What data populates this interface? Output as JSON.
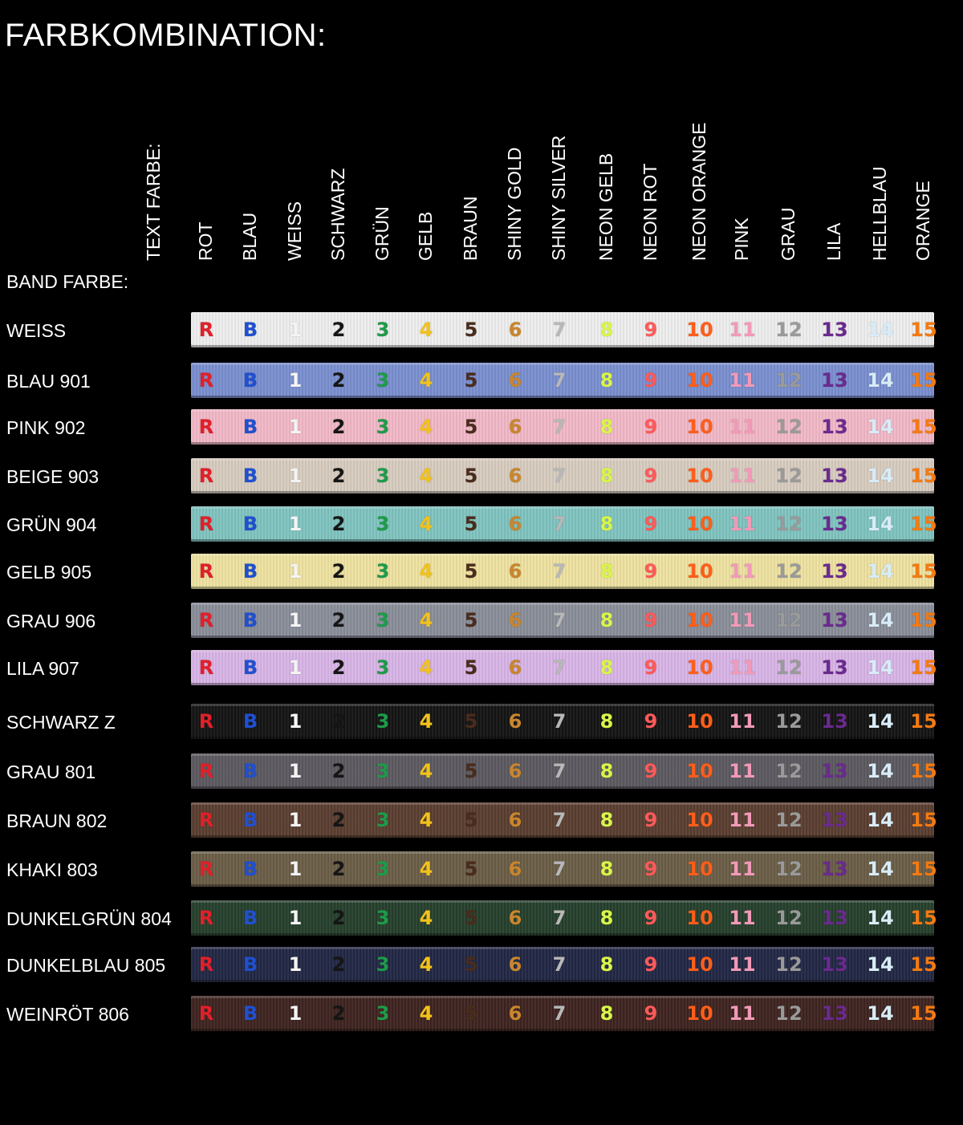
{
  "title": "FARBKOMBINATION:",
  "text_farbe_label": "TEXT FARBE:",
  "band_farbe_label": "BAND FARBE:",
  "text_colors": [
    {
      "name": "ROT",
      "code": "R",
      "color": "#e0202a"
    },
    {
      "name": "BLAU",
      "code": "B",
      "color": "#2050d0"
    },
    {
      "name": "WEISS",
      "code": "1",
      "color": "#f4f4f4"
    },
    {
      "name": "SCHWARZ",
      "code": "2",
      "color": "#151515"
    },
    {
      "name": "GRÜN",
      "code": "3",
      "color": "#1f9a4a"
    },
    {
      "name": "GELB",
      "code": "4",
      "color": "#f2c21b"
    },
    {
      "name": "BRAUN",
      "code": "5",
      "color": "#4a2c1c"
    },
    {
      "name": "SHINY GOLD",
      "code": "6",
      "color": "#c8862e"
    },
    {
      "name": "SHINY SILVER",
      "code": "7",
      "color": "#b8b8b8"
    },
    {
      "name": "NEON GELB",
      "code": "8",
      "color": "#d9f54a"
    },
    {
      "name": "NEON ROT",
      "code": "9",
      "color": "#ff5a5a"
    },
    {
      "name": "NEON ORANGE",
      "code": "10",
      "color": "#ff5e1a"
    },
    {
      "name": "PINK",
      "code": "11",
      "color": "#f19ab8"
    },
    {
      "name": "GRAU",
      "code": "12",
      "color": "#9a9a9a"
    },
    {
      "name": "LILA",
      "code": "13",
      "color": "#6b2a8f"
    },
    {
      "name": "HELLBLAU",
      "code": "14",
      "color": "#d8ecf8"
    },
    {
      "name": "ORANGE",
      "code": "15",
      "color": "#f47a12"
    }
  ],
  "band_colors": [
    {
      "label": "WEISS",
      "color": "#eeeeee"
    },
    {
      "label": "BLAU 901",
      "color": "#7a8fd0"
    },
    {
      "label": "PINK 902",
      "color": "#f2b8c8"
    },
    {
      "label": "BEIGE 903",
      "color": "#d8ccc0"
    },
    {
      "label": "GRÜN 904",
      "color": "#7fc4c0"
    },
    {
      "label": "GELB 905",
      "color": "#eee2a0"
    },
    {
      "label": "GRAU 906",
      "color": "#8a8e9a"
    },
    {
      "label": "LILA 907",
      "color": "#d8b4e6"
    },
    {
      "label": "SCHWARZ Z",
      "color": "#141414"
    },
    {
      "label": "GRAU 801",
      "color": "#5c5a60"
    },
    {
      "label": "BRAUN 802",
      "color": "#5a3e30"
    },
    {
      "label": "KHAKI 803",
      "color": "#6a5e48"
    },
    {
      "label": "DUNKELGRÜN 804",
      "color": "#26402c"
    },
    {
      "label": "DUNKELBLAU 805",
      "color": "#222844"
    },
    {
      "label": "WEINRÖT 806",
      "color": "#3e2420"
    }
  ]
}
